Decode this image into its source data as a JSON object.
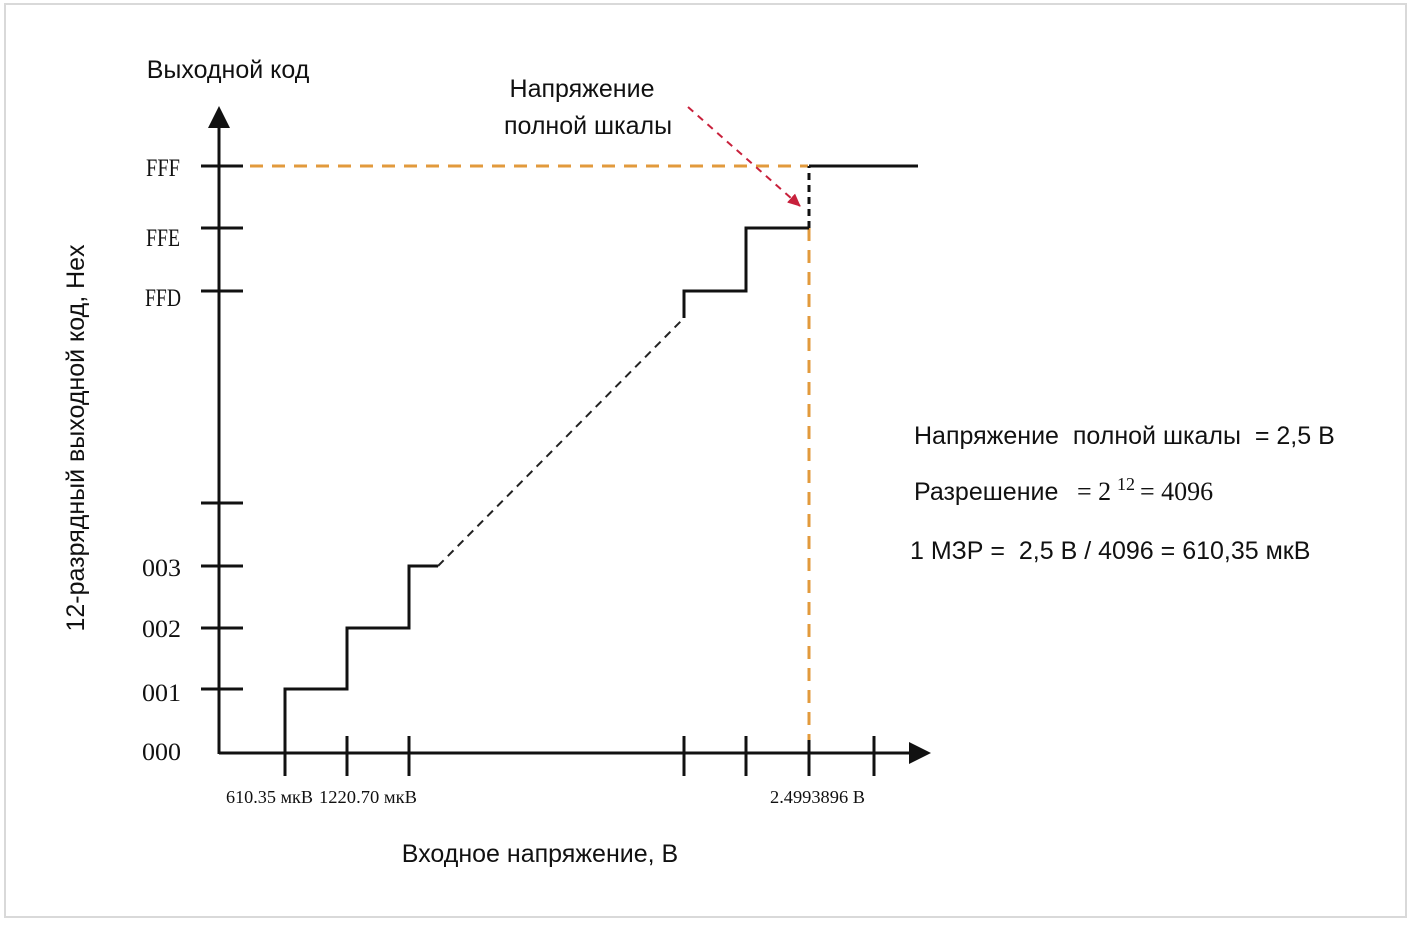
{
  "axes": {
    "y_title": "Выходной код",
    "y_side_label": "12-разрядный выходной код, Hex",
    "x_title": "Входное напряжение, В"
  },
  "y_ticks": [
    "FFF",
    "FFE",
    "FFD",
    "003",
    "002",
    "001",
    "000"
  ],
  "x_ticks": {
    "first": "610.35 мкВ",
    "second": "1220.70 мкВ",
    "last": "2.4993896 В"
  },
  "annotation": {
    "line1": "Напряжение",
    "line2": "полной шкалы"
  },
  "formulas": {
    "full_scale": "Напряжение  полной шкалы  = 2,5 В",
    "resolution_prefix": "Разрешение",
    "resolution_eq": "= 2",
    "resolution_exp": "12",
    "resolution_result": "= 4096",
    "lsb": "1 МЗР =  2,5 В / 4096 = 610,35 мкВ"
  },
  "colors": {
    "line": "#111111",
    "guide": "#e29a3c",
    "arrow": "#c8213c",
    "dash": "#222222"
  }
}
